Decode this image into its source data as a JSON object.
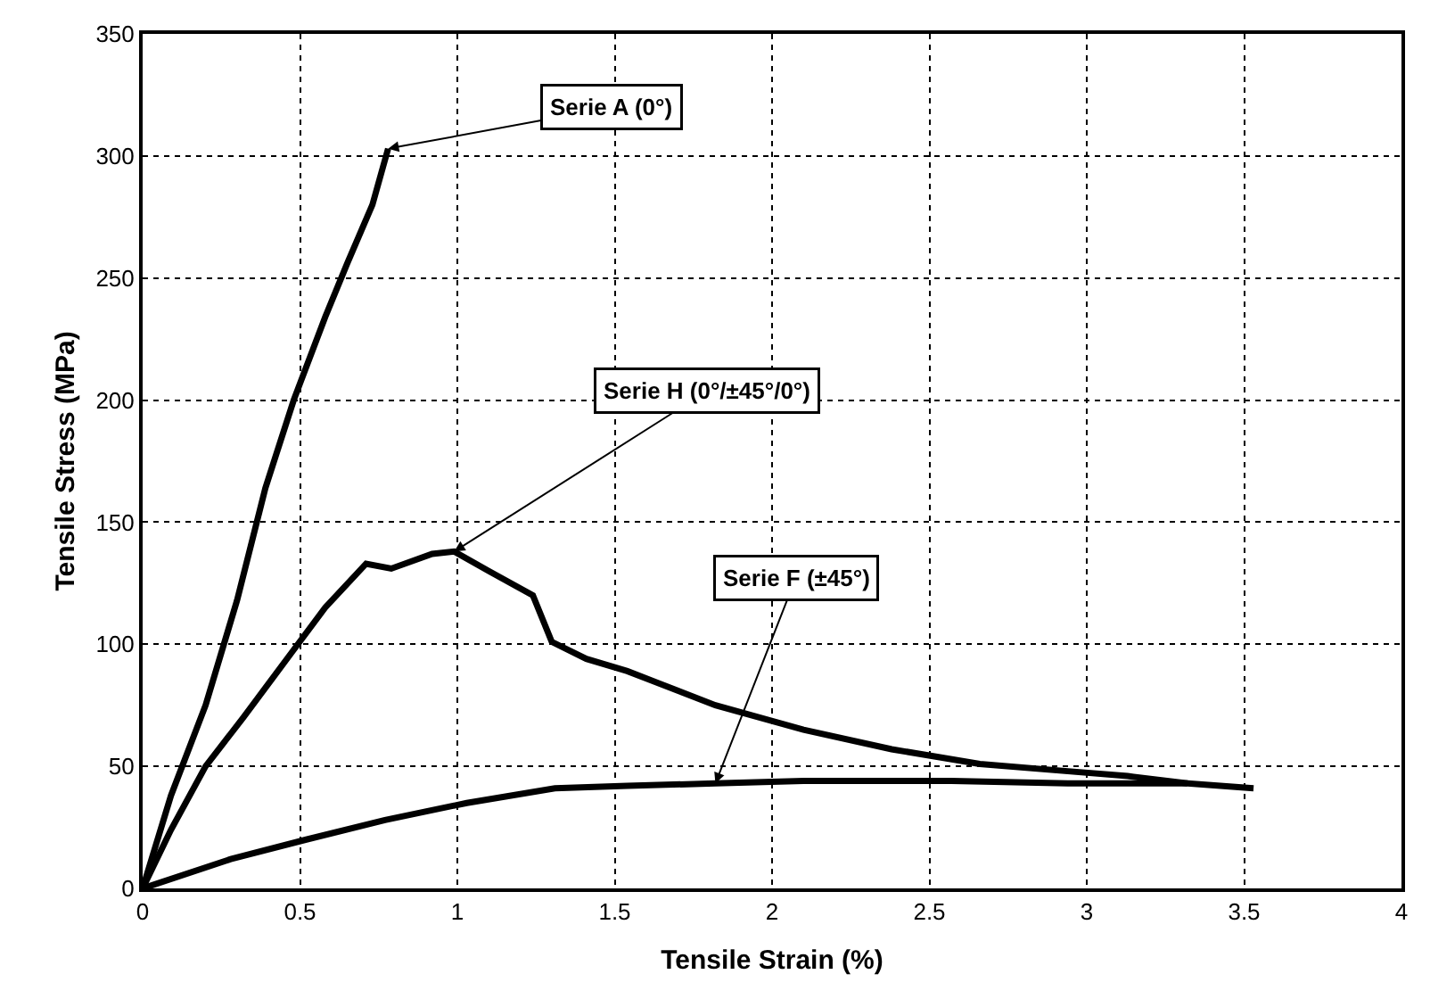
{
  "chart_data": {
    "type": "line",
    "xlabel": "Tensile Strain (%)",
    "ylabel": "Tensile Stress (MPa)",
    "xlim": [
      0,
      4
    ],
    "xticks": [
      0,
      0.5,
      1,
      1.5,
      2,
      2.5,
      3,
      3.5,
      4
    ],
    "ylim": [
      0,
      350
    ],
    "yticks": [
      0,
      50,
      100,
      150,
      200,
      250,
      300,
      350
    ],
    "grid": true,
    "marker": "none",
    "line_style": "solid",
    "series": [
      {
        "color": "#000000",
        "x": [
          0,
          0.09,
          0.2,
          0.3,
          0.39,
          0.48,
          0.58,
          0.65,
          0.73,
          0.78
        ],
        "values": [
          0,
          38,
          75,
          118,
          164,
          200,
          234,
          256,
          280,
          303
        ]
      },
      {
        "color": "#000000",
        "x": [
          0,
          0.09,
          0.2,
          0.32,
          0.47,
          0.58,
          0.71,
          0.79,
          0.92,
          0.99,
          1.1,
          1.24,
          1.3,
          1.41,
          1.54,
          1.82,
          2.1,
          2.38,
          2.66,
          2.94,
          3.13,
          3.32
        ],
        "values": [
          0,
          24,
          50,
          70,
          96,
          115,
          133,
          131,
          137,
          138,
          130,
          120,
          101,
          94,
          89,
          75,
          65,
          57,
          51,
          48,
          46,
          43
        ]
      },
      {
        "color": "#000000",
        "x": [
          0,
          0.28,
          0.52,
          0.77,
          1.03,
          1.31,
          1.54,
          1.82,
          2.1,
          2.57,
          2.94,
          3.32,
          3.53
        ],
        "values": [
          0,
          12,
          20,
          28,
          35,
          41,
          42,
          43,
          44,
          44,
          43,
          43,
          41
        ]
      }
    ],
    "annotations": [
      {
        "text": "Serie A (0°)",
        "x": 0.78,
        "y": 303
      },
      {
        "text": "Serie H (0°/±45°/0°)",
        "x": 0.99,
        "y": 138
      },
      {
        "text": "Serie F (±45°)",
        "x": 1.82,
        "y": 43
      }
    ]
  }
}
